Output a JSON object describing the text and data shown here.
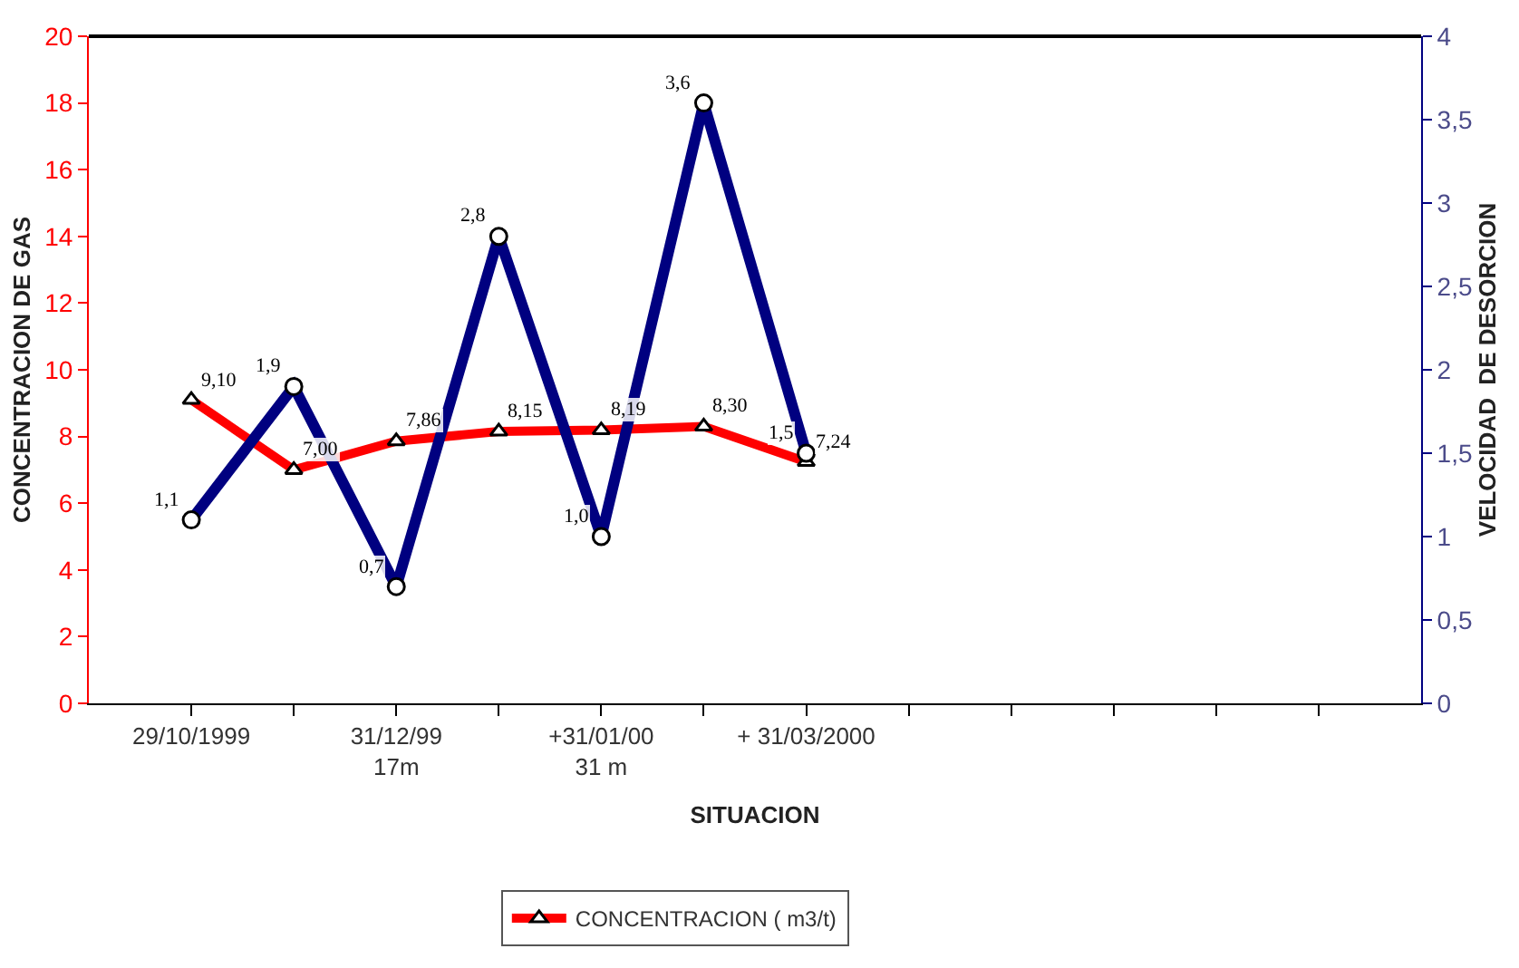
{
  "chart_data": {
    "type": "line",
    "xlabel": "SITUACION",
    "ylabel": "CONCENTRACION DE GAS",
    "y2label": "VELOCIDAD  DE DESORCION",
    "categories": [
      "29/10/1999",
      null,
      "31/12/99\n17m",
      null,
      "+31/01/00\n31 m",
      null,
      "+ 31/03/2000",
      null,
      null,
      null,
      null,
      null
    ],
    "series": [
      {
        "name": "CONCENTRACION ( m3/t)",
        "color": "#ff0000",
        "marker": "triangle",
        "values": [
          9.1,
          7.0,
          7.86,
          8.15,
          8.19,
          8.3,
          7.24,
          null,
          null,
          null,
          null,
          null
        ],
        "value_labels": [
          "9,10",
          "7,00",
          "7,86",
          "8,15",
          "8,19",
          "8,30",
          "7,24",
          null,
          null,
          null,
          null,
          null
        ]
      },
      {
        "color": "#000080",
        "marker": "circle",
        "axis": "y2",
        "values": [
          1.1,
          1.9,
          0.7,
          2.8,
          1.0,
          3.6,
          1.5,
          null,
          null,
          null,
          null,
          null
        ],
        "value_labels": [
          "1,1",
          "1,9",
          "0,7",
          "2,8",
          "1,0",
          "3,6",
          "1,5",
          null,
          null,
          null,
          null,
          null
        ]
      }
    ],
    "ylim": [
      0,
      20
    ],
    "yticks": [
      0,
      2,
      4,
      6,
      8,
      10,
      12,
      14,
      16,
      18,
      20
    ],
    "y2lim": [
      0,
      4
    ],
    "y2ticks": [
      0,
      {
        "value": 0.5,
        "label": "0,5"
      },
      1,
      {
        "value": 1.5,
        "label": "1,5"
      },
      2,
      {
        "value": 2.5,
        "label": "2,5"
      },
      3,
      {
        "value": 3.5,
        "label": "3,5"
      },
      4
    ],
    "legend": "bottom",
    "line_style": "solid"
  }
}
